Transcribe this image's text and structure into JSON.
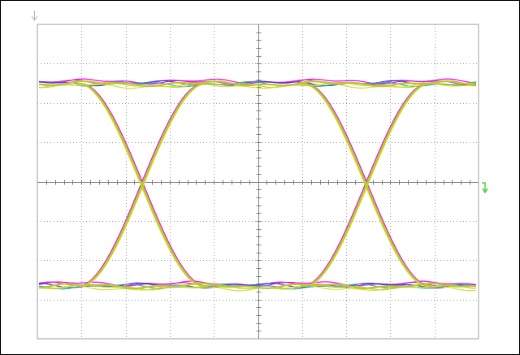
{
  "screen": {
    "background": "#ffffff",
    "frame_color": "#000000"
  },
  "graticule": {
    "divisions_x": 10,
    "divisions_y": 8,
    "minor_per_division": 5,
    "border_color": "#a6a6a6",
    "grid_color": "#a8a8a8",
    "axis_color": "#8a8a8a"
  },
  "indicators": {
    "ground_marker_icon": "down-arrow-icon",
    "ground_marker_color": "#b3b3b3",
    "trigger_marker_icon": "trigger-level-icon",
    "trigger_marker_color": "#33cc33"
  },
  "waveform": {
    "kind": "eye-diagram",
    "persistence_colors": [
      "#ff00ff",
      "#cc33cc",
      "#4444cc",
      "#33aaaa",
      "#bcd23c",
      "#d6df2f"
    ],
    "dominant_color": "#bcc832"
  }
}
